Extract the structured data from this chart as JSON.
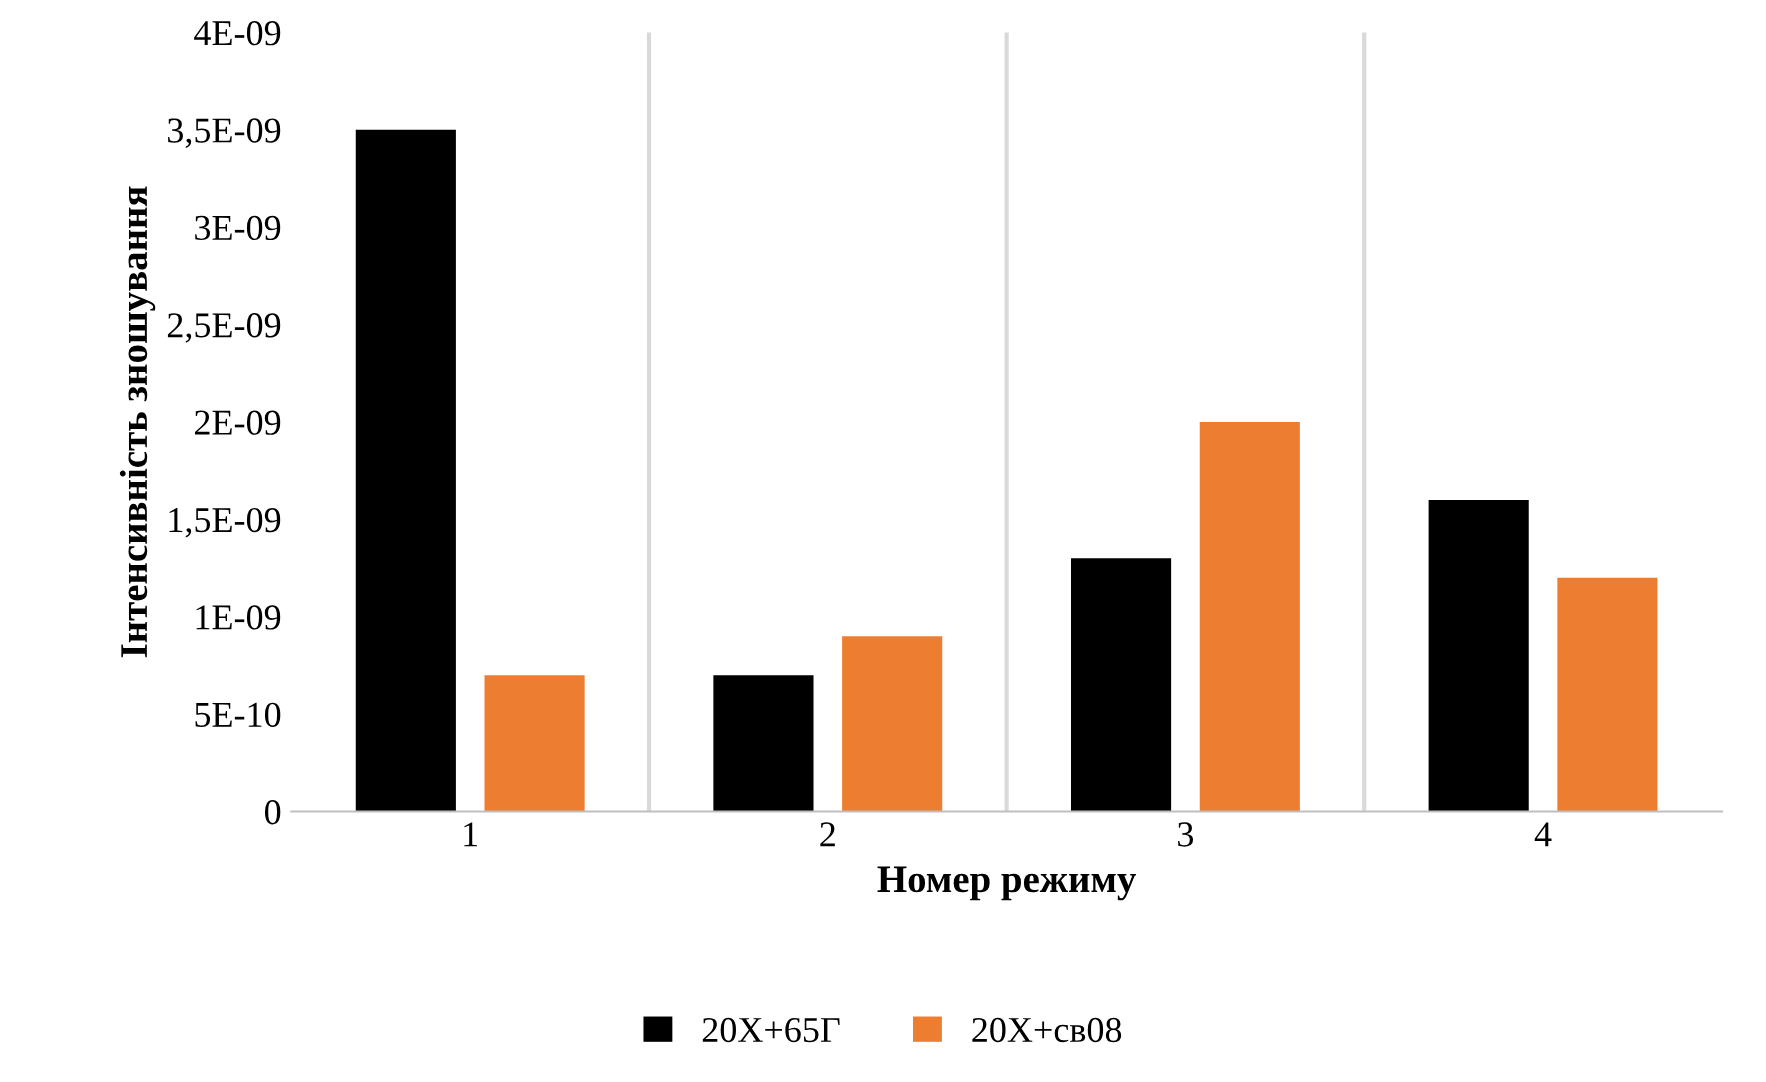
{
  "chart_data": {
    "type": "bar",
    "xlabel": "Номер режиму",
    "ylabel": "Інтенсивність зношування",
    "categories": [
      "1",
      "2",
      "3",
      "4"
    ],
    "series": [
      {
        "name": "20Х+65Г",
        "color": "#000000",
        "values": [
          3.5e-09,
          7e-10,
          1.3e-09,
          1.6e-09
        ]
      },
      {
        "name": "20Х+св08",
        "color": "#ed7d31",
        "values": [
          7e-10,
          9e-10,
          2e-09,
          1.2e-09
        ]
      }
    ],
    "ylim": [
      0,
      4e-09
    ],
    "yticks": [
      0,
      {
        "value": 5e-10,
        "label": "5E-10"
      },
      {
        "value": 1e-09,
        "label": "1E-09"
      },
      {
        "value": 1.5e-09,
        "label": "1,5E-09"
      },
      {
        "value": 2e-09,
        "label": "2E-09"
      },
      {
        "value": 2.5e-09,
        "label": "2,5E-09"
      },
      {
        "value": 3e-09,
        "label": "3E-09"
      },
      {
        "value": 3.5e-09,
        "label": "3,5E-09"
      },
      {
        "value": 4e-09,
        "label": "4E-09"
      }
    ],
    "grid": "x",
    "legend": "bottom"
  }
}
